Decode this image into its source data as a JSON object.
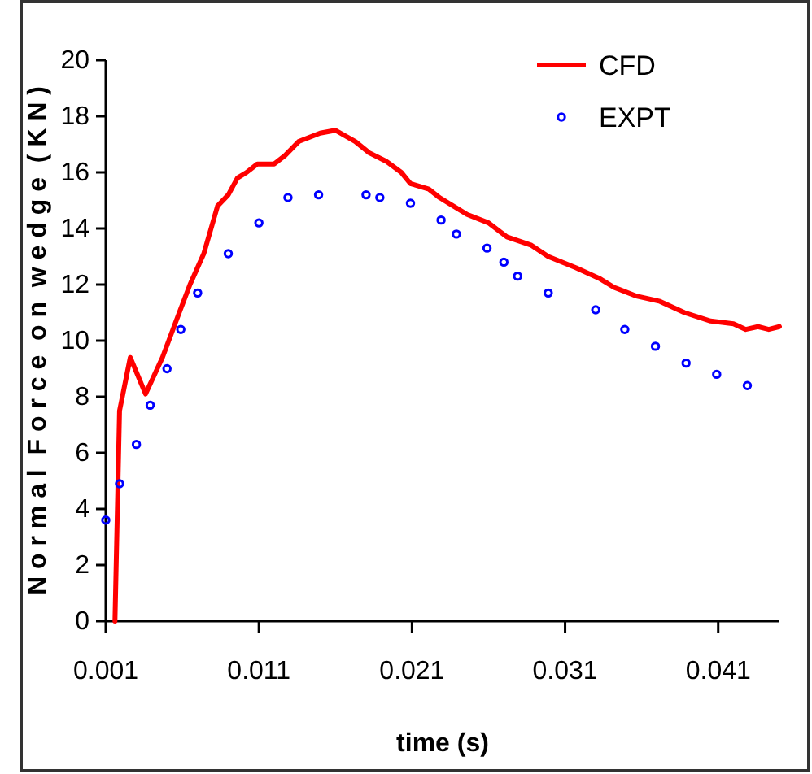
{
  "chart_data": {
    "type": "line",
    "xlabel": "time (s)",
    "ylabel": "N o r m a l  F o r c e  o n  w e d g e  ( K N )",
    "xlim": [
      0.001,
      0.045
    ],
    "xticks": [
      0.001,
      0.011,
      0.021,
      0.031,
      0.041
    ],
    "ylim": [
      0,
      20
    ],
    "yticks": [
      0,
      2,
      4,
      6,
      8,
      10,
      12,
      14,
      16,
      18,
      20
    ],
    "grid": false,
    "legend": "top right",
    "series": [
      {
        "name": "CFD",
        "color": "#ff0000",
        "marker": "none",
        "line_style": "solid",
        "x": [
          0.0016,
          0.0019,
          0.0026,
          0.0036,
          0.0047,
          0.0058,
          0.0065,
          0.0074,
          0.0083,
          0.009,
          0.0096,
          0.0102,
          0.0109,
          0.012,
          0.0127,
          0.0136,
          0.015,
          0.016,
          0.0173,
          0.0182,
          0.0193,
          0.0203,
          0.0209,
          0.0221,
          0.0228,
          0.0246,
          0.026,
          0.0272,
          0.0288,
          0.0299,
          0.0317,
          0.0333,
          0.0342,
          0.0356,
          0.0372,
          0.0388,
          0.0405,
          0.042,
          0.0428,
          0.0436,
          0.0443,
          0.045
        ],
        "values": [
          0,
          7.5,
          9.4,
          8.1,
          9.4,
          11.0,
          12.0,
          13.1,
          14.8,
          15.2,
          15.8,
          16.0,
          16.3,
          16.3,
          16.6,
          17.1,
          17.4,
          17.5,
          17.1,
          16.7,
          16.4,
          16.0,
          15.6,
          15.4,
          15.1,
          14.5,
          14.2,
          13.7,
          13.4,
          13.0,
          12.6,
          12.2,
          11.9,
          11.6,
          11.4,
          11.0,
          10.7,
          10.6,
          10.4,
          10.5,
          10.4,
          10.5
        ]
      },
      {
        "name": "EXPT",
        "type": "scatter",
        "color": "#0000ff",
        "marker": "circle",
        "x": [
          0.001,
          0.0019,
          0.003,
          0.0039,
          0.005,
          0.0059,
          0.007,
          0.009,
          0.011,
          0.0129,
          0.0149,
          0.018,
          0.0189,
          0.0209,
          0.0229,
          0.0239,
          0.0259,
          0.027,
          0.0279,
          0.0299,
          0.033,
          0.0349,
          0.0369,
          0.0389,
          0.0409,
          0.0429
        ],
        "values": [
          3.6,
          4.9,
          6.3,
          7.7,
          9.0,
          10.4,
          11.7,
          13.1,
          14.2,
          15.1,
          15.2,
          15.2,
          15.1,
          14.9,
          14.3,
          13.8,
          13.3,
          12.8,
          12.3,
          11.7,
          11.1,
          10.4,
          9.8,
          9.2,
          8.8,
          8.4
        ]
      }
    ]
  }
}
